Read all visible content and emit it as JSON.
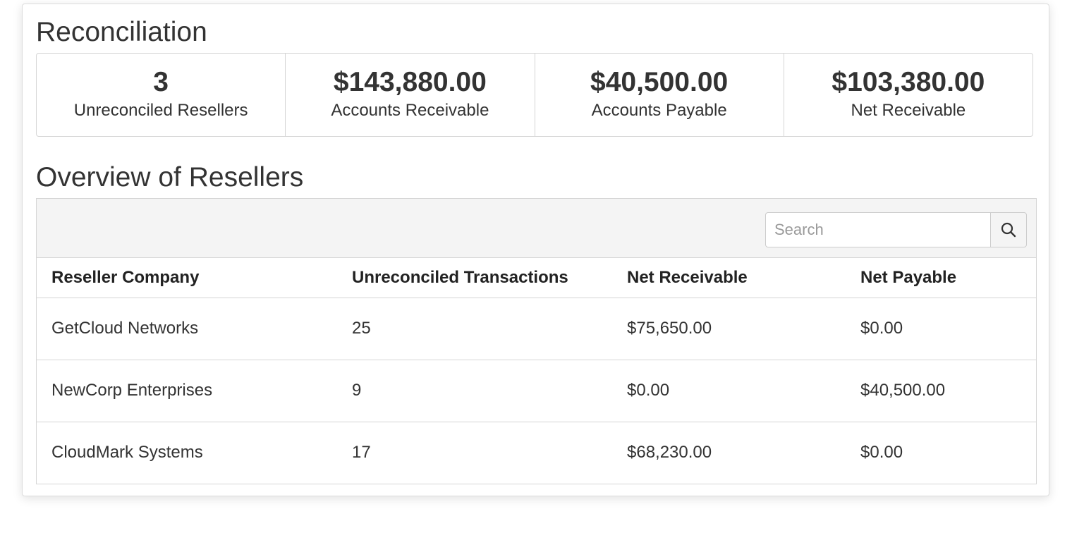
{
  "reconciliation": {
    "title": "Reconciliation",
    "stats": [
      {
        "value": "3",
        "label": "Unreconciled Resellers"
      },
      {
        "value": "$143,880.00",
        "label": "Accounts Receivable"
      },
      {
        "value": "$40,500.00",
        "label": "Accounts Payable"
      },
      {
        "value": "$103,380.00",
        "label": "Net Receivable"
      }
    ]
  },
  "overview": {
    "title": "Overview of Resellers",
    "search": {
      "placeholder": "Search",
      "value": "",
      "icon": "search-icon"
    },
    "columns": [
      "Reseller Company",
      "Unreconciled Transactions",
      "Net Receivable",
      "Net Payable"
    ],
    "rows": [
      [
        "GetCloud Networks",
        "25",
        "$75,650.00",
        "$0.00"
      ],
      [
        "NewCorp Enterprises",
        "9",
        "$0.00",
        "$40,500.00"
      ],
      [
        "CloudMark Systems",
        "17",
        "$68,230.00",
        "$0.00"
      ]
    ]
  }
}
